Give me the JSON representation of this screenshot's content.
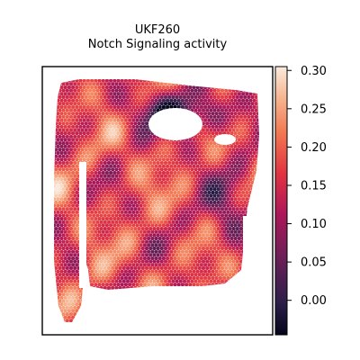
{
  "chart_data": {
    "type": "heatmap",
    "title": "UKF260",
    "subtitle": "Notch Signaling activity",
    "xlabel": "",
    "ylabel": "",
    "grid": false,
    "colorbar": {
      "colormap": "rocket",
      "range": [
        -0.045,
        0.305
      ],
      "ticks": [
        0.3,
        0.25,
        0.2,
        0.15,
        0.1,
        0.05,
        0.0
      ],
      "tick_labels": [
        "0.30",
        "0.25",
        "0.20",
        "0.15",
        "0.10",
        "0.05",
        "0.00"
      ]
    }
  }
}
